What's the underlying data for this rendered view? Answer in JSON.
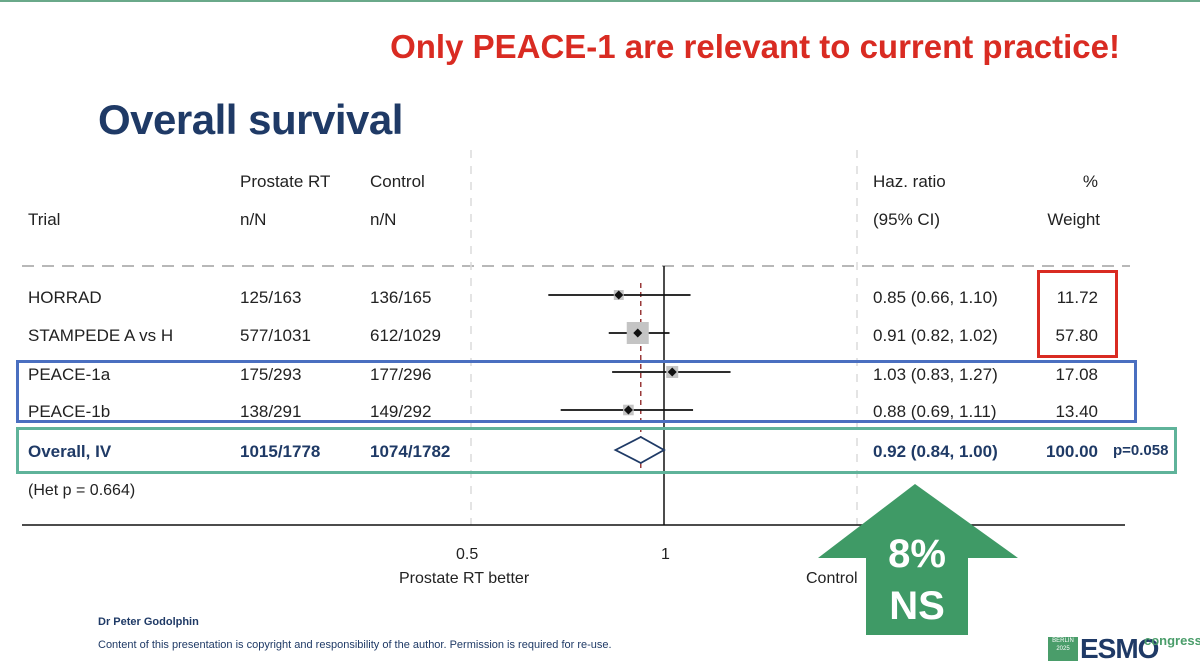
{
  "headline": "Only PEACE-1 are relevant to current practice!",
  "title": "Overall survival",
  "headers": {
    "prostate_rt_1": "Prostate RT",
    "prostate_rt_2": "n/N",
    "control_1": "Control",
    "control_2": "n/N",
    "trial": "Trial",
    "hr_1": "Haz. ratio",
    "hr_2": "(95% CI)",
    "weight_1": "%",
    "weight_2": "Weight"
  },
  "rows": [
    {
      "trial": "HORRAD",
      "rt": "125/163",
      "control": "136/165",
      "hr_text": "0.85 (0.66, 1.10)",
      "weight": "11.72"
    },
    {
      "trial": "STAMPEDE A vs H",
      "rt": "577/1031",
      "control": "612/1029",
      "hr_text": "0.91 (0.82, 1.02)",
      "weight": "57.80"
    },
    {
      "trial": "PEACE-1a",
      "rt": "175/293",
      "control": "177/296",
      "hr_text": "1.03 (0.83, 1.27)",
      "weight": "17.08"
    },
    {
      "trial": "PEACE-1b",
      "rt": "138/291",
      "control": "149/292",
      "hr_text": "0.88 (0.69, 1.11)",
      "weight": "13.40"
    }
  ],
  "overall": {
    "trial": "Overall, IV",
    "rt": "1015/1778",
    "control": "1074/1782",
    "hr_text": "0.92 (0.84, 1.00)",
    "weight": "100.00",
    "p": "p=0.058"
  },
  "het": "(Het p = 0.664)",
  "axis": {
    "tick_05": "0.5",
    "tick_1": "1",
    "left_label": "Prostate RT better",
    "right_label": "Control"
  },
  "callout": {
    "line1": "8%",
    "line2": "NS"
  },
  "footer": {
    "author": "Dr Peter Godolphin",
    "copyright": "Content of this presentation is copyright and responsibility of the author. Permission is required for re-use."
  },
  "logo": {
    "badge_line1": "BERLIN",
    "badge_line2": "2025",
    "brand": "ESMO",
    "congress": "congress"
  },
  "colors": {
    "headline": "#d92b22",
    "title": "#1f3a66",
    "weight_box": "#d92b22",
    "peace_box": "#4a6fc0",
    "overall_box": "#5fb39a",
    "arrow": "#3f9a66"
  },
  "chart_data": {
    "type": "forest",
    "xscale": "log",
    "xticks": [
      0.5,
      1
    ],
    "null_line": 1,
    "pooled_line": 0.92,
    "series": [
      {
        "name": "HORRAD",
        "hr": 0.85,
        "lo": 0.66,
        "hi": 1.1,
        "weight": 11.72
      },
      {
        "name": "STAMPEDE A vs H",
        "hr": 0.91,
        "lo": 0.82,
        "hi": 1.02,
        "weight": 57.8
      },
      {
        "name": "PEACE-1a",
        "hr": 1.03,
        "lo": 0.83,
        "hi": 1.27,
        "weight": 17.08
      },
      {
        "name": "PEACE-1b",
        "hr": 0.88,
        "lo": 0.69,
        "hi": 1.11,
        "weight": 13.4
      }
    ],
    "overall": {
      "name": "Overall, IV",
      "hr": 0.92,
      "lo": 0.84,
      "hi": 1.0
    }
  }
}
